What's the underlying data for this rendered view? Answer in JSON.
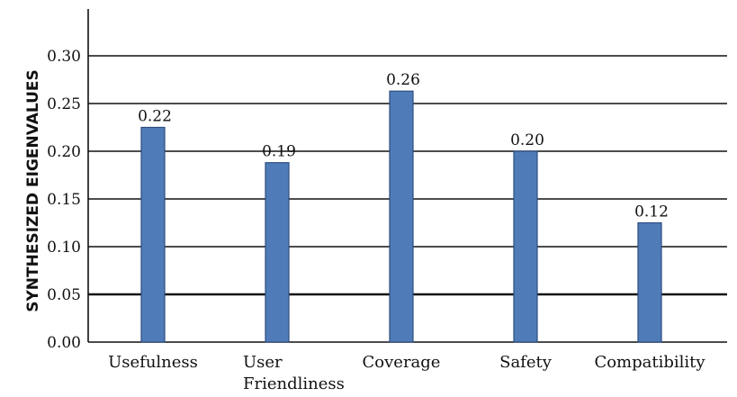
{
  "chart_data": {
    "type": "bar",
    "title": "",
    "xlabel": "",
    "ylabel": "SYNTHESIZED EIGENVALUES",
    "categories": [
      "Usefulness",
      "User\nFriendliness",
      "Coverage",
      "Safety",
      "Compatibility"
    ],
    "values": [
      0.225,
      0.188,
      0.263,
      0.2,
      0.125
    ],
    "data_labels": [
      "0.22",
      "0.19",
      "0.26",
      "0.20",
      "0.12"
    ],
    "yticks": [
      "0.00",
      "0.05",
      "0.10",
      "0.15",
      "0.20",
      "0.25",
      "0.30"
    ],
    "ylim": [
      0,
      0.3
    ],
    "grid": true,
    "legend": "none",
    "colors": {
      "bar_fill": "#4f7cb8",
      "bar_stroke": "#2c4d80",
      "grid": "#111111"
    }
  }
}
